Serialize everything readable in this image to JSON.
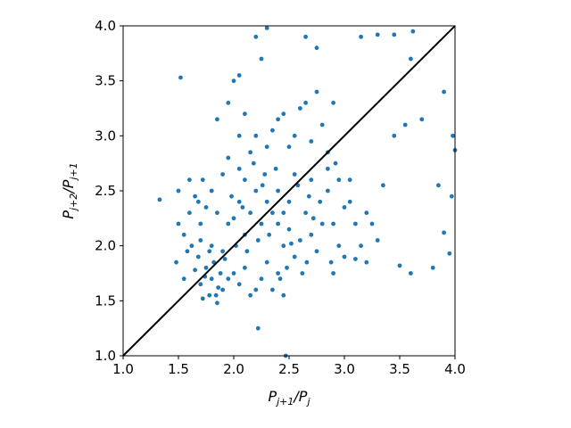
{
  "chart_data": {
    "type": "scatter",
    "xlabel": [
      "P",
      "j+1",
      "/P",
      "j"
    ],
    "ylabel": [
      "P",
      "j+2",
      "/P",
      "j+1"
    ],
    "xlim": [
      1,
      4
    ],
    "ylim": [
      1,
      4
    ],
    "xticks": [
      {
        "value": 1,
        "label": "1.0"
      },
      1.5,
      {
        "value": 2,
        "label": "2.0"
      },
      2.5,
      {
        "value": 3,
        "label": "3.0"
      },
      3.5,
      {
        "value": 4,
        "label": "4.0"
      }
    ],
    "yticks": [
      {
        "value": 1,
        "label": "1.0"
      },
      1.5,
      {
        "value": 2,
        "label": "2.0"
      },
      2.5,
      {
        "value": 3,
        "label": "3.0"
      },
      3.5,
      {
        "value": 4,
        "label": "4.0"
      }
    ],
    "grid": false,
    "diagonal": true,
    "diagonal_color": "#000000",
    "series": [
      {
        "color": "#1f77b4",
        "x": [
          1.33,
          2.22,
          2.47,
          2.3,
          1.52,
          3.95,
          4.0,
          3.97,
          3.9,
          3.85,
          3.98,
          3.9,
          3.8,
          3.6,
          3.5,
          3.55,
          3.7,
          3.6,
          3.45,
          3.3,
          3.15,
          3.62,
          3.45,
          3.35,
          3.3,
          3.1,
          3.0,
          3.2,
          3.05,
          2.95,
          2.9,
          2.75,
          2.65,
          2.2,
          2.25,
          2.05,
          2.0,
          1.95,
          1.85,
          2.05,
          1.6,
          1.5,
          1.48,
          1.55,
          1.72,
          1.78,
          1.85,
          1.9,
          1.7,
          1.8,
          1.88,
          1.75,
          1.82,
          1.68,
          1.92,
          1.78,
          1.86,
          1.74,
          1.95,
          1.65,
          1.8,
          1.9,
          1.7,
          1.84,
          2.0,
          2.05,
          2.1,
          2.15,
          2.2,
          2.25,
          2.3,
          2.1,
          2.18,
          2.28,
          2.35,
          2.4,
          2.02,
          2.12,
          2.22,
          2.32,
          2.08,
          2.26,
          2.38,
          2.15,
          1.98,
          1.95,
          2.05,
          2.3,
          2.4,
          2.45,
          2.5,
          2.55,
          2.6,
          2.65,
          2.7,
          2.75,
          2.5,
          2.58,
          2.68,
          2.48,
          2.62,
          2.72,
          2.78,
          2.55,
          2.45,
          2.66,
          2.52,
          2.42,
          2.7,
          2.05,
          2.15,
          2.25,
          2.35,
          2.45,
          2.1,
          2.3,
          2.2,
          2.4,
          2.0,
          2.45,
          2.55,
          2.6,
          2.7,
          2.8,
          2.85,
          2.5,
          2.35,
          2.65,
          2.75,
          2.4,
          2.2,
          2.1,
          1.95,
          2.85,
          1.55,
          1.6,
          1.65,
          1.7,
          1.75,
          1.8,
          1.58,
          1.62,
          1.85,
          1.72,
          1.9,
          1.5,
          1.68,
          2.85,
          2.9,
          2.95,
          3.0,
          2.88,
          3.05,
          3.1,
          3.15,
          2.92,
          3.2,
          2.8,
          2.9,
          3.25
        ],
        "values": [
          2.42,
          1.25,
          1.0,
          3.98,
          3.53,
          1.93,
          2.87,
          2.45,
          2.12,
          2.55,
          3.0,
          3.4,
          1.8,
          1.75,
          1.82,
          3.1,
          3.15,
          3.7,
          3.92,
          3.92,
          3.9,
          3.95,
          3.0,
          2.55,
          2.05,
          1.88,
          1.9,
          2.3,
          2.4,
          2.6,
          3.3,
          3.8,
          3.9,
          3.9,
          3.7,
          3.55,
          3.5,
          3.3,
          3.15,
          3.0,
          2.6,
          2.2,
          1.85,
          1.7,
          1.52,
          1.55,
          1.48,
          1.6,
          1.65,
          1.7,
          1.75,
          1.8,
          1.85,
          1.9,
          1.88,
          1.95,
          1.62,
          1.72,
          1.7,
          1.78,
          2.0,
          1.95,
          2.05,
          1.55,
          2.25,
          2.4,
          2.1,
          2.3,
          2.5,
          2.2,
          2.4,
          2.6,
          2.75,
          2.65,
          2.3,
          2.5,
          2.0,
          1.95,
          2.05,
          2.1,
          2.35,
          2.55,
          2.7,
          2.85,
          2.45,
          2.2,
          2.7,
          2.9,
          2.2,
          2.0,
          2.15,
          1.9,
          2.05,
          2.3,
          2.1,
          1.95,
          2.4,
          2.55,
          2.45,
          1.8,
          1.75,
          2.25,
          2.4,
          2.65,
          2.3,
          1.85,
          2.02,
          1.7,
          2.6,
          1.65,
          1.55,
          1.7,
          1.6,
          1.55,
          1.8,
          1.85,
          1.6,
          1.75,
          1.75,
          3.2,
          3.0,
          3.25,
          2.95,
          3.1,
          2.85,
          2.9,
          3.05,
          3.3,
          3.4,
          3.15,
          3.0,
          3.2,
          2.8,
          2.7,
          2.1,
          2.3,
          2.45,
          2.2,
          2.35,
          2.5,
          1.95,
          2.0,
          2.3,
          2.6,
          2.65,
          2.5,
          2.4,
          2.5,
          2.2,
          2.0,
          2.35,
          1.85,
          2.6,
          2.2,
          2.0,
          2.75,
          1.85,
          2.2,
          1.75,
          2.2
        ]
      }
    ]
  }
}
